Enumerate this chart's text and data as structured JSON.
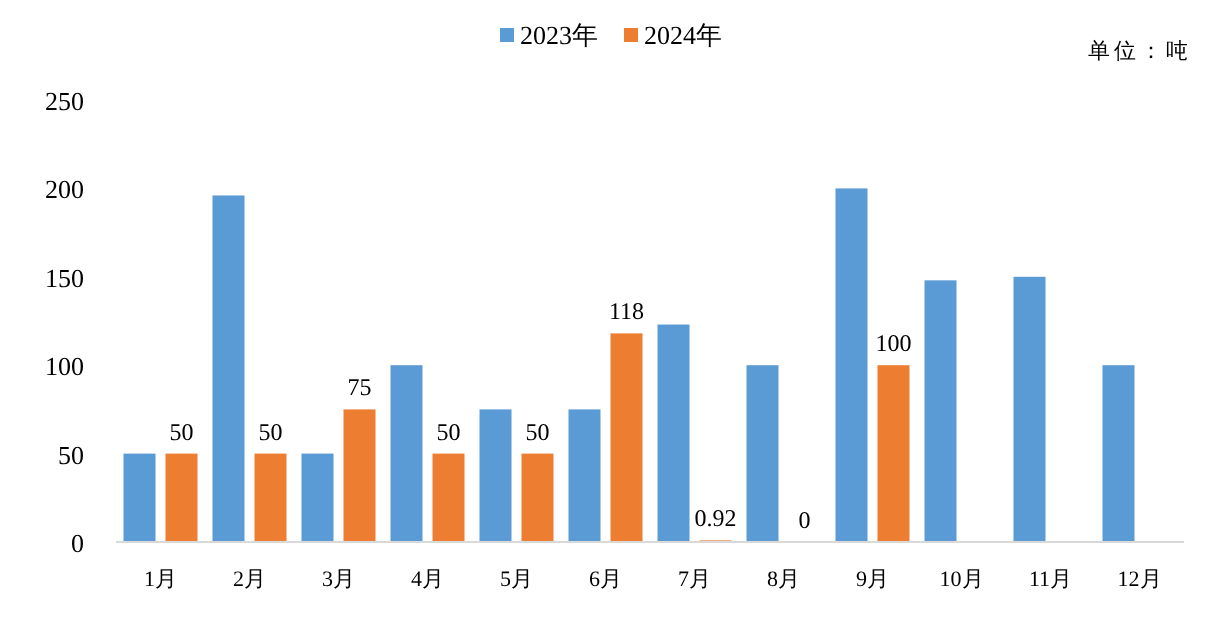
{
  "chart_data": {
    "type": "bar",
    "annotations": [
      "单位：吨"
    ],
    "categories": [
      "1月",
      "2月",
      "3月",
      "4月",
      "5月",
      "6月",
      "7月",
      "8月",
      "9月",
      "10月",
      "11月",
      "12月"
    ],
    "series": [
      {
        "name": "2023年",
        "color": "#5b9bd5",
        "values": [
          50,
          196,
          50,
          100,
          75,
          75,
          123,
          100,
          200,
          148,
          150,
          100
        ]
      },
      {
        "name": "2024年",
        "color": "#ed7d31",
        "values": [
          50,
          50,
          75,
          50,
          50,
          118,
          0.92,
          0,
          100,
          null,
          null,
          null
        ],
        "value_labels": [
          "50",
          "50",
          "75",
          "50",
          "50",
          "118",
          "0.92",
          "0",
          "100",
          null,
          null,
          null
        ]
      }
    ],
    "ylim": [
      0,
      250
    ],
    "yticks": [
      0,
      50,
      100,
      150,
      200,
      250
    ],
    "grid": false,
    "legend": "top"
  }
}
